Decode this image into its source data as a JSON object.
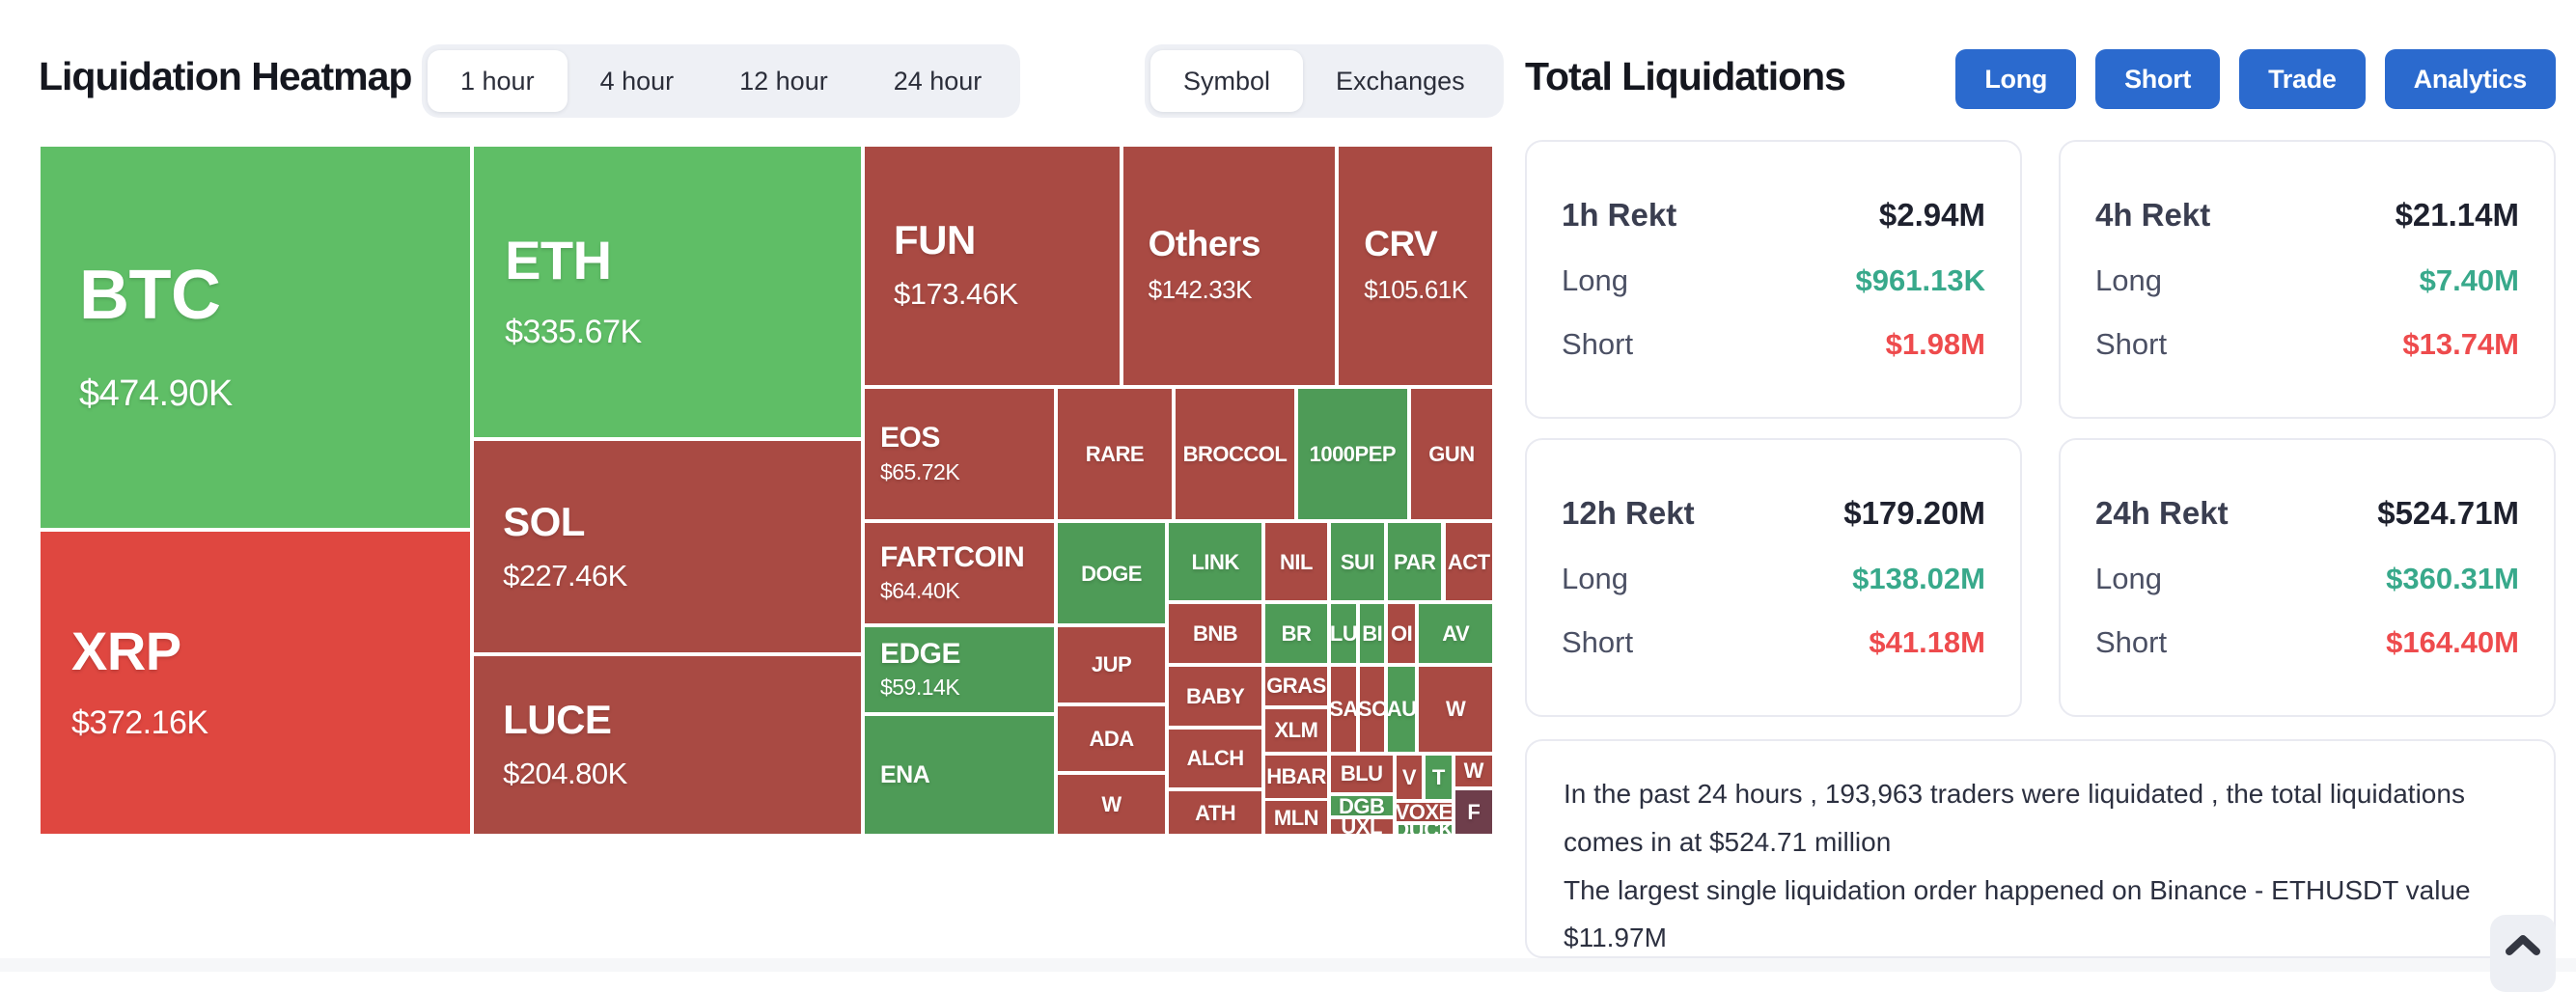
{
  "header": {
    "title": "Liquidation Heatmap",
    "time_tabs": [
      "1 hour",
      "4 hour",
      "12 hour",
      "24 hour"
    ],
    "time_tab_selected": "1 hour",
    "view_tabs": [
      "Symbol",
      "Exchanges"
    ],
    "view_tab_selected": "Symbol",
    "right_title": "Total Liquidations",
    "action_buttons": [
      "Long",
      "Short",
      "Trade",
      "Analytics"
    ]
  },
  "colors": {
    "bright-green": "#5fbe66",
    "mid-green": "#4e9b57",
    "bright-red": "#df4740",
    "dark-red": "#a94a43",
    "maroon": "#6e3e4b",
    "button-blue": "#2b6ace",
    "long-green": "#38a98b",
    "short-red": "#ee4b4d"
  },
  "chart_data": {
    "type": "heatmap",
    "title": "Liquidation Heatmap (1 hour, by Symbol)",
    "legend_position": "none",
    "cells": [
      {
        "symbol": "BTC",
        "value": "$474.90K",
        "color": "bright-green",
        "tier": "t1",
        "rect": {
          "l": 0,
          "t": 0,
          "w": 29.78,
          "h": 55.71
        }
      },
      {
        "symbol": "XRP",
        "value": "$372.16K",
        "color": "bright-red",
        "tier": "t2",
        "rect": {
          "l": 0,
          "t": 55.71,
          "w": 29.78,
          "h": 44.29
        }
      },
      {
        "symbol": "ETH",
        "value": "$335.67K",
        "color": "bright-green",
        "tier": "t2",
        "rect": {
          "l": 29.78,
          "t": 0,
          "w": 26.85,
          "h": 42.62
        }
      },
      {
        "symbol": "SOL",
        "value": "$227.46K",
        "color": "dark-red",
        "tier": "t3",
        "rect": {
          "l": 29.78,
          "t": 42.62,
          "w": 26.85,
          "h": 31.19
        }
      },
      {
        "symbol": "LUCE",
        "value": "$204.80K",
        "color": "dark-red",
        "tier": "t3",
        "rect": {
          "l": 29.78,
          "t": 73.81,
          "w": 26.85,
          "h": 26.19
        }
      },
      {
        "symbol": "FUN",
        "value": "$173.46K",
        "color": "dark-red",
        "tier": "t3",
        "rect": {
          "l": 56.63,
          "t": 0,
          "w": 17.75,
          "h": 35.0
        }
      },
      {
        "symbol": "Others",
        "value": "$142.33K",
        "color": "dark-red",
        "tier": "t4",
        "rect": {
          "l": 74.38,
          "t": 0,
          "w": 14.83,
          "h": 35.0
        }
      },
      {
        "symbol": "CRV",
        "value": "$105.61K",
        "color": "dark-red",
        "tier": "t4",
        "rect": {
          "l": 89.21,
          "t": 0,
          "w": 10.79,
          "h": 35.0
        }
      },
      {
        "symbol": "EOS",
        "value": "$65.72K",
        "color": "dark-red",
        "tier": "t5",
        "rect": {
          "l": 56.63,
          "t": 35.0,
          "w": 13.26,
          "h": 19.52
        }
      },
      {
        "symbol": "RARE",
        "color": "dark-red",
        "tier": "t6",
        "rect": {
          "l": 69.89,
          "t": 35.0,
          "w": 8.09,
          "h": 19.52
        }
      },
      {
        "symbol": "BROCCOL",
        "color": "dark-red",
        "tier": "t6",
        "rect": {
          "l": 77.98,
          "t": 35.0,
          "w": 8.43,
          "h": 19.52
        }
      },
      {
        "symbol": "1000PEP",
        "color": "mid-green",
        "tier": "t6",
        "rect": {
          "l": 86.4,
          "t": 35.0,
          "w": 7.75,
          "h": 19.52
        }
      },
      {
        "symbol": "GUN",
        "color": "dark-red",
        "tier": "t6",
        "rect": {
          "l": 94.16,
          "t": 35.0,
          "w": 5.84,
          "h": 19.52
        }
      },
      {
        "symbol": "FARTCOIN",
        "value": "$64.40K",
        "color": "dark-red",
        "tier": "t5",
        "rect": {
          "l": 56.63,
          "t": 54.52,
          "w": 13.26,
          "h": 15.0
        }
      },
      {
        "symbol": "DOGE",
        "color": "mid-green",
        "tier": "t6",
        "rect": {
          "l": 69.89,
          "t": 54.52,
          "w": 7.64,
          "h": 15.0
        }
      },
      {
        "symbol": "LINK",
        "color": "mid-green",
        "tier": "t6",
        "rect": {
          "l": 77.53,
          "t": 54.52,
          "w": 6.63,
          "h": 11.67
        }
      },
      {
        "symbol": "NIL",
        "color": "dark-red",
        "tier": "t6",
        "rect": {
          "l": 84.16,
          "t": 54.52,
          "w": 4.49,
          "h": 11.67
        }
      },
      {
        "symbol": "SUI",
        "color": "mid-green",
        "tier": "t6",
        "rect": {
          "l": 88.65,
          "t": 54.52,
          "w": 3.93,
          "h": 11.67
        }
      },
      {
        "symbol": "PAR",
        "color": "mid-green",
        "tier": "t6",
        "rect": {
          "l": 92.58,
          "t": 54.52,
          "w": 3.93,
          "h": 11.67
        }
      },
      {
        "symbol": "ACT",
        "color": "dark-red",
        "tier": "t6",
        "rect": {
          "l": 96.52,
          "t": 54.52,
          "w": 3.48,
          "h": 11.67
        }
      },
      {
        "symbol": "EDGE",
        "value": "$59.14K",
        "color": "mid-green",
        "tier": "t5",
        "rect": {
          "l": 56.63,
          "t": 69.52,
          "w": 13.26,
          "h": 12.86
        }
      },
      {
        "symbol": "ENA",
        "color": "mid-green",
        "tier": "t5b",
        "rect": {
          "l": 56.63,
          "t": 82.38,
          "w": 13.26,
          "h": 17.62
        }
      },
      {
        "symbol": "JUP",
        "color": "dark-red",
        "tier": "t6",
        "rect": {
          "l": 69.89,
          "t": 69.52,
          "w": 7.64,
          "h": 11.43
        }
      },
      {
        "symbol": "ADA",
        "color": "dark-red",
        "tier": "t6",
        "rect": {
          "l": 69.89,
          "t": 80.95,
          "w": 7.64,
          "h": 10.0
        }
      },
      {
        "symbol": "W",
        "color": "dark-red",
        "tier": "t6",
        "rect": {
          "l": 69.89,
          "t": 90.95,
          "w": 7.64,
          "h": 9.05
        }
      },
      {
        "symbol": "BNB",
        "color": "dark-red",
        "tier": "t6",
        "rect": {
          "l": 77.53,
          "t": 66.19,
          "w": 6.63,
          "h": 9.05
        }
      },
      {
        "symbol": "BABY",
        "color": "dark-red",
        "tier": "t6",
        "rect": {
          "l": 77.53,
          "t": 75.24,
          "w": 6.63,
          "h": 9.05
        }
      },
      {
        "symbol": "ALCH",
        "color": "dark-red",
        "tier": "t6",
        "rect": {
          "l": 77.53,
          "t": 84.29,
          "w": 6.63,
          "h": 9.05
        }
      },
      {
        "symbol": "ATH",
        "color": "dark-red",
        "tier": "t6",
        "rect": {
          "l": 77.53,
          "t": 93.33,
          "w": 6.63,
          "h": 6.67
        }
      },
      {
        "symbol": "BR",
        "color": "mid-green",
        "tier": "t6",
        "rect": {
          "l": 84.16,
          "t": 66.19,
          "w": 4.49,
          "h": 9.05
        }
      },
      {
        "symbol": "GRAS",
        "color": "dark-red",
        "tier": "t6",
        "rect": {
          "l": 84.16,
          "t": 75.24,
          "w": 4.49,
          "h": 6.19
        }
      },
      {
        "symbol": "XLM",
        "color": "dark-red",
        "tier": "t6",
        "rect": {
          "l": 84.16,
          "t": 81.43,
          "w": 4.49,
          "h": 6.67
        }
      },
      {
        "symbol": "HBAR",
        "color": "dark-red",
        "tier": "t6",
        "rect": {
          "l": 84.16,
          "t": 88.1,
          "w": 4.49,
          "h": 6.67
        }
      },
      {
        "symbol": "MLN",
        "color": "dark-red",
        "tier": "t6",
        "rect": {
          "l": 84.16,
          "t": 94.76,
          "w": 4.49,
          "h": 5.24
        }
      },
      {
        "symbol": "LU",
        "color": "mid-green",
        "tier": "t6",
        "rect": {
          "l": 88.65,
          "t": 66.19,
          "w": 2.02,
          "h": 9.05
        }
      },
      {
        "symbol": "BI",
        "color": "mid-green",
        "tier": "t6",
        "rect": {
          "l": 90.67,
          "t": 66.19,
          "w": 1.91,
          "h": 9.05
        }
      },
      {
        "symbol": "OI",
        "color": "dark-red",
        "tier": "t6",
        "rect": {
          "l": 92.58,
          "t": 66.19,
          "w": 2.13,
          "h": 9.05
        }
      },
      {
        "symbol": "AV",
        "color": "mid-green",
        "tier": "t6",
        "rect": {
          "l": 94.72,
          "t": 66.19,
          "w": 5.28,
          "h": 9.05
        }
      },
      {
        "symbol": "SA",
        "color": "dark-red",
        "tier": "t6",
        "rect": {
          "l": 88.65,
          "t": 75.24,
          "w": 2.02,
          "h": 12.86
        }
      },
      {
        "symbol": "SC",
        "color": "dark-red",
        "tier": "t6",
        "rect": {
          "l": 90.67,
          "t": 75.24,
          "w": 1.91,
          "h": 12.86
        }
      },
      {
        "symbol": "AU",
        "color": "mid-green",
        "tier": "t6",
        "rect": {
          "l": 92.58,
          "t": 75.24,
          "w": 2.13,
          "h": 12.86
        }
      },
      {
        "symbol": "W",
        "color": "dark-red",
        "tier": "t6",
        "rect": {
          "l": 94.72,
          "t": 75.24,
          "w": 5.28,
          "h": 12.86
        }
      },
      {
        "symbol": "BLU",
        "color": "dark-red",
        "tier": "t6",
        "rect": {
          "l": 88.65,
          "t": 88.1,
          "w": 4.49,
          "h": 5.9
        }
      },
      {
        "symbol": "DGB",
        "color": "mid-green",
        "tier": "t6",
        "rect": {
          "l": 88.65,
          "t": 94.0,
          "w": 4.49,
          "h": 3.4
        }
      },
      {
        "symbol": "UXL",
        "color": "dark-red",
        "tier": "t6",
        "rect": {
          "l": 88.65,
          "t": 97.4,
          "w": 4.49,
          "h": 2.6
        }
      },
      {
        "symbol": "V",
        "color": "dark-red",
        "tier": "t6",
        "rect": {
          "l": 93.15,
          "t": 88.1,
          "w": 2.02,
          "h": 6.9
        }
      },
      {
        "symbol": "T",
        "color": "mid-green",
        "tier": "t6",
        "rect": {
          "l": 95.17,
          "t": 88.1,
          "w": 2.02,
          "h": 6.9
        }
      },
      {
        "symbol": "W",
        "color": "dark-red",
        "tier": "t6",
        "rect": {
          "l": 97.19,
          "t": 88.1,
          "w": 2.81,
          "h": 5.0
        }
      },
      {
        "symbol": "VOXE",
        "color": "dark-red",
        "tier": "t6",
        "rect": {
          "l": 93.15,
          "t": 95.0,
          "w": 4.04,
          "h": 3.2
        }
      },
      {
        "symbol": "DUCK",
        "color": "mid-green",
        "tier": "t6",
        "rect": {
          "l": 93.15,
          "t": 98.2,
          "w": 4.04,
          "h": 1.8
        }
      },
      {
        "symbol": "F",
        "color": "maroon",
        "tier": "t6",
        "rect": {
          "l": 97.19,
          "t": 93.1,
          "w": 2.81,
          "h": 6.9
        }
      }
    ]
  },
  "stats": {
    "cards": [
      {
        "title": "1h Rekt",
        "total": "$2.94M",
        "long_label": "Long",
        "long": "$961.13K",
        "short_label": "Short",
        "short": "$1.98M"
      },
      {
        "title": "4h Rekt",
        "total": "$21.14M",
        "long_label": "Long",
        "long": "$7.40M",
        "short_label": "Short",
        "short": "$13.74M"
      },
      {
        "title": "12h Rekt",
        "total": "$179.20M",
        "long_label": "Long",
        "long": "$138.02M",
        "short_label": "Short",
        "short": "$41.18M"
      },
      {
        "title": "24h Rekt",
        "total": "$524.71M",
        "long_label": "Long",
        "long": "$360.31M",
        "short_label": "Short",
        "short": "$164.40M"
      }
    ]
  },
  "summary": {
    "line1": "In the past 24 hours , 193,963 traders were liquidated , the total liquidations comes in at $524.71 million",
    "line2": "The largest single liquidation order happened on Binance - ETHUSDT value $11.97M"
  },
  "scroll_top_icon": "chevron-up-icon"
}
